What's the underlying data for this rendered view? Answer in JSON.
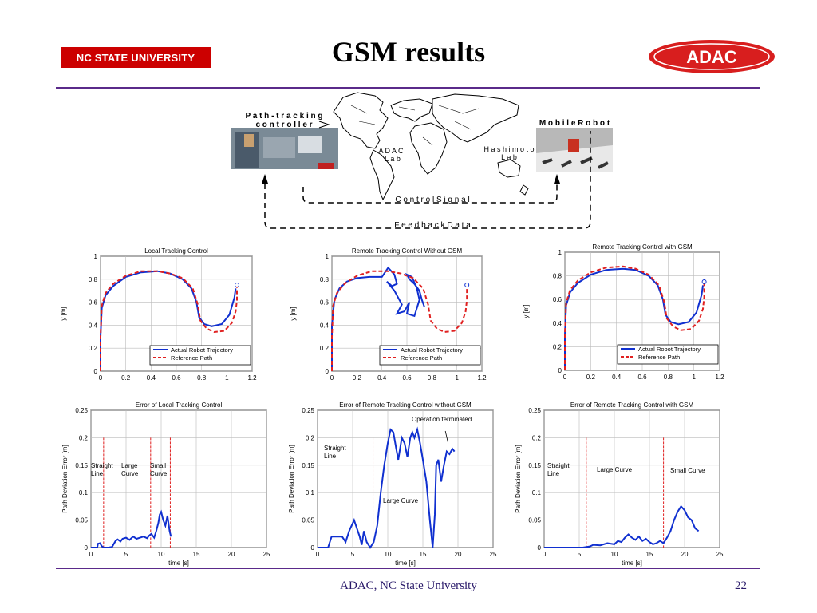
{
  "header": {
    "university": "NC STATE  UNIVERSITY",
    "title": "GSM results",
    "adac_logo": "ADAC"
  },
  "diagram": {
    "path_tracking_controller": [
      "P a t h - t r a c k i n g",
      "c o n t r o l l e r"
    ],
    "mobile_robot": "M o b i l e  R o b o t",
    "adac_lab": [
      "A D A C",
      "L a b"
    ],
    "hashimoto_lab": [
      "H a s h i m o t o",
      "L a b"
    ],
    "control_signal": "C o n t r o l  S i g n a l",
    "feedback_data": "F e e d b a c k  D a t a"
  },
  "footer": {
    "text": "ADAC, NC State University",
    "page": "22"
  },
  "chart_data": [
    {
      "type": "line",
      "title": "Local Tracking Control",
      "ylabel": "y [m]",
      "xlim": [
        0,
        1.2
      ],
      "ylim": [
        0,
        1
      ],
      "xticks": [
        "0",
        "0.2",
        "0.4",
        "0.6",
        "0.8",
        "1",
        "1.2"
      ],
      "yticks": [
        "0",
        "0.2",
        "0.4",
        "0.6",
        "0.8",
        "1"
      ],
      "legend": [
        "Actual Robot Trajectory",
        "Reference Path"
      ],
      "legend_position": "bottom-right",
      "grid": true,
      "series": [
        {
          "name": "Actual Robot Trajectory",
          "color": "#1030d0",
          "x": [
            0.0,
            0.0,
            0.01,
            0.04,
            0.1,
            0.2,
            0.32,
            0.45,
            0.55,
            0.65,
            0.72,
            0.76,
            0.78,
            0.82,
            0.88,
            0.96,
            1.02,
            1.06,
            1.07
          ],
          "y": [
            0.0,
            0.3,
            0.55,
            0.66,
            0.74,
            0.82,
            0.86,
            0.87,
            0.85,
            0.8,
            0.72,
            0.6,
            0.47,
            0.41,
            0.39,
            0.41,
            0.49,
            0.64,
            0.72
          ]
        },
        {
          "name": "Reference Path",
          "color": "#e02020",
          "x": [
            0.0,
            0.0,
            0.01,
            0.04,
            0.1,
            0.2,
            0.32,
            0.45,
            0.55,
            0.65,
            0.73,
            0.77,
            0.79,
            0.84,
            0.9,
            0.98,
            1.04,
            1.07,
            1.08,
            1.08
          ],
          "y": [
            0.0,
            0.3,
            0.57,
            0.68,
            0.76,
            0.83,
            0.87,
            0.87,
            0.85,
            0.81,
            0.72,
            0.58,
            0.44,
            0.37,
            0.34,
            0.35,
            0.42,
            0.52,
            0.62,
            0.75
          ]
        }
      ]
    },
    {
      "type": "line",
      "title": "Remote Tracking Control Without GSM",
      "ylabel": "y [m]",
      "xlim": [
        0,
        1.2
      ],
      "ylim": [
        0,
        1
      ],
      "xticks": [
        "0",
        "0.2",
        "0.4",
        "0.6",
        "0.8",
        "1",
        "1.2"
      ],
      "yticks": [
        "0",
        "0.2",
        "0.4",
        "0.6",
        "0.8",
        "1"
      ],
      "legend": [
        "Actual Robot Trajectory",
        "Reference Path"
      ],
      "legend_position": "bottom-right",
      "grid": true,
      "series": [
        {
          "name": "Actual Robot Trajectory",
          "color": "#1030d0",
          "x": [
            0.0,
            0.0,
            0.02,
            0.06,
            0.12,
            0.2,
            0.3,
            0.4,
            0.45,
            0.5,
            0.52,
            0.48,
            0.44,
            0.5,
            0.56,
            0.52,
            0.58,
            0.62,
            0.6,
            0.66,
            0.7,
            0.68,
            0.64,
            0.6,
            0.62,
            0.66,
            0.7,
            0.72,
            0.74
          ],
          "y": [
            0.0,
            0.4,
            0.62,
            0.72,
            0.78,
            0.81,
            0.82,
            0.82,
            0.9,
            0.84,
            0.76,
            0.74,
            0.78,
            0.7,
            0.58,
            0.5,
            0.52,
            0.6,
            0.5,
            0.48,
            0.62,
            0.72,
            0.82,
            0.84,
            0.8,
            0.76,
            0.7,
            0.62,
            0.56
          ]
        },
        {
          "name": "Reference Path",
          "color": "#e02020",
          "x": [
            0.0,
            0.0,
            0.01,
            0.04,
            0.1,
            0.2,
            0.32,
            0.45,
            0.55,
            0.65,
            0.73,
            0.77,
            0.79,
            0.84,
            0.9,
            0.98,
            1.04,
            1.07,
            1.08,
            1.08
          ],
          "y": [
            0.0,
            0.3,
            0.57,
            0.68,
            0.76,
            0.83,
            0.87,
            0.87,
            0.85,
            0.81,
            0.72,
            0.58,
            0.44,
            0.37,
            0.34,
            0.35,
            0.42,
            0.52,
            0.62,
            0.75
          ]
        }
      ]
    },
    {
      "type": "line",
      "title": "Remote Tracking Control with GSM",
      "ylabel": "y [m]",
      "xlim": [
        0,
        1.2
      ],
      "ylim": [
        0,
        1
      ],
      "xticks": [
        "0",
        "0.2",
        "0.4",
        "0.6",
        "0.8",
        "1",
        "1.2"
      ],
      "yticks": [
        "0",
        "0.2",
        "0.4",
        "0.6",
        "0.8",
        "1"
      ],
      "legend": [
        "Actual Robot Trajectory",
        "Reference Path"
      ],
      "legend_position": "bottom-right",
      "grid": true,
      "series": [
        {
          "name": "Actual Robot Trajectory",
          "color": "#1030d0",
          "x": [
            0.0,
            0.0,
            0.01,
            0.04,
            0.1,
            0.2,
            0.32,
            0.45,
            0.55,
            0.65,
            0.72,
            0.76,
            0.78,
            0.82,
            0.88,
            0.96,
            1.02,
            1.06,
            1.07
          ],
          "y": [
            0.0,
            0.3,
            0.55,
            0.66,
            0.74,
            0.81,
            0.85,
            0.86,
            0.85,
            0.8,
            0.72,
            0.6,
            0.47,
            0.41,
            0.39,
            0.41,
            0.49,
            0.64,
            0.72
          ]
        },
        {
          "name": "Reference Path",
          "color": "#e02020",
          "x": [
            0.0,
            0.0,
            0.01,
            0.04,
            0.1,
            0.2,
            0.32,
            0.45,
            0.55,
            0.65,
            0.73,
            0.77,
            0.79,
            0.84,
            0.9,
            0.98,
            1.04,
            1.07,
            1.08,
            1.08
          ],
          "y": [
            0.0,
            0.3,
            0.57,
            0.68,
            0.76,
            0.83,
            0.87,
            0.88,
            0.86,
            0.81,
            0.72,
            0.58,
            0.44,
            0.37,
            0.34,
            0.35,
            0.42,
            0.52,
            0.62,
            0.75
          ]
        }
      ]
    },
    {
      "type": "line",
      "title": "Error of Local Tracking Control",
      "xlabel": "time [s]",
      "ylabel": "Path Deviation  Error [m]",
      "xlim": [
        0,
        25
      ],
      "ylim": [
        0,
        0.25
      ],
      "xticks": [
        "0",
        "5",
        "10",
        "15",
        "20",
        "25"
      ],
      "yticks": [
        "0",
        "0.05",
        "0.1",
        "0.15",
        "0.2",
        "0.25"
      ],
      "grid": true,
      "vlines": [
        1.8,
        8.5,
        11.3
      ],
      "annotations": [
        [
          "Straight",
          "Line"
        ],
        [
          "Large",
          "Curve"
        ],
        [
          "Small",
          "Curve"
        ]
      ],
      "series": [
        {
          "name": "error",
          "color": "#1030d0",
          "x": [
            0,
            0.9,
            1.0,
            1.3,
            1.5,
            1.8,
            2.5,
            3.0,
            3.5,
            3.8,
            4.2,
            4.5,
            5.0,
            5.5,
            6.0,
            6.5,
            7.0,
            7.5,
            8.0,
            8.3,
            8.6,
            9.0,
            9.3,
            9.6,
            9.8,
            10.0,
            10.3,
            10.6,
            10.9,
            11.2,
            11.4
          ],
          "y": [
            0,
            0,
            0.007,
            0.008,
            0.003,
            0,
            0,
            0.001,
            0.012,
            0.015,
            0.011,
            0.016,
            0.018,
            0.014,
            0.02,
            0.016,
            0.018,
            0.02,
            0.017,
            0.022,
            0.025,
            0.018,
            0.03,
            0.045,
            0.06,
            0.065,
            0.05,
            0.04,
            0.058,
            0.03,
            0.02
          ]
        }
      ]
    },
    {
      "type": "line",
      "title": "Error of Remote Tracking Control without GSM",
      "xlabel": "time [s]",
      "ylabel": "Path Deviation Error [m]",
      "xlim": [
        0,
        25
      ],
      "ylim": [
        0,
        0.25
      ],
      "xticks": [
        "0",
        "5",
        "10",
        "15",
        "20",
        "25"
      ],
      "yticks": [
        "0",
        "0.05",
        "0.1",
        "0.15",
        "0.2",
        "0.25"
      ],
      "grid": true,
      "vlines": [
        7.9
      ],
      "annotations": [
        [
          "Straight",
          "Line"
        ],
        [
          "Large Curve"
        ],
        [
          "Operation terminated"
        ]
      ],
      "series": [
        {
          "name": "error",
          "color": "#1030d0",
          "x": [
            0,
            1.5,
            2.0,
            3.5,
            4.0,
            4.5,
            5.2,
            5.6,
            6.0,
            6.3,
            6.6,
            7.0,
            7.5,
            8.0,
            8.5,
            9.0,
            9.5,
            10.0,
            10.4,
            10.8,
            11.2,
            11.5,
            12.0,
            12.4,
            12.8,
            13.2,
            13.5,
            13.8,
            14.2,
            14.6,
            15.0,
            15.5,
            16.0,
            16.4,
            16.7,
            16.9,
            17.2,
            17.6,
            18.0,
            18.4,
            18.8,
            19.2,
            19.5
          ],
          "y": [
            0,
            0,
            0.02,
            0.02,
            0.01,
            0.03,
            0.05,
            0.035,
            0.02,
            0.005,
            0.03,
            0.01,
            0,
            0.01,
            0.04,
            0.1,
            0.15,
            0.19,
            0.215,
            0.21,
            0.18,
            0.16,
            0.2,
            0.19,
            0.165,
            0.2,
            0.21,
            0.2,
            0.215,
            0.19,
            0.16,
            0.12,
            0.05,
            0.0,
            0.06,
            0.15,
            0.16,
            0.12,
            0.15,
            0.175,
            0.17,
            0.18,
            0.175
          ]
        }
      ]
    },
    {
      "type": "line",
      "title": "Error of Remote Tracking Control with GSM",
      "xlabel": "time [s]",
      "ylabel": "Path Deviation Error [m]",
      "xlim": [
        0,
        25
      ],
      "ylim": [
        0,
        0.25
      ],
      "xticks": [
        "0",
        "5",
        "10",
        "15",
        "20",
        "25"
      ],
      "yticks": [
        "0",
        "0.05",
        "0.1",
        "0.15",
        "0.2",
        "0.25"
      ],
      "grid": true,
      "vlines": [
        6.0,
        17.0
      ],
      "annotations": [
        [
          "Straight",
          "Line"
        ],
        [
          "Large Curve"
        ],
        [
          "Small Curve"
        ]
      ],
      "series": [
        {
          "name": "error",
          "color": "#1030d0",
          "x": [
            0,
            5.5,
            6.5,
            7.0,
            8.0,
            9.0,
            10.0,
            10.5,
            11.0,
            11.5,
            12.0,
            12.5,
            13.0,
            13.5,
            14.0,
            14.5,
            15.0,
            15.5,
            16.0,
            16.5,
            17.0,
            17.5,
            18.0,
            18.5,
            19.0,
            19.5,
            20.0,
            20.5,
            21.0,
            21.5,
            22.0
          ],
          "y": [
            0,
            0,
            0.002,
            0.005,
            0.004,
            0.008,
            0.006,
            0.012,
            0.01,
            0.018,
            0.024,
            0.018,
            0.014,
            0.02,
            0.012,
            0.016,
            0.01,
            0.006,
            0.008,
            0.012,
            0.008,
            0.018,
            0.03,
            0.05,
            0.065,
            0.075,
            0.068,
            0.055,
            0.05,
            0.035,
            0.03
          ]
        }
      ]
    }
  ]
}
